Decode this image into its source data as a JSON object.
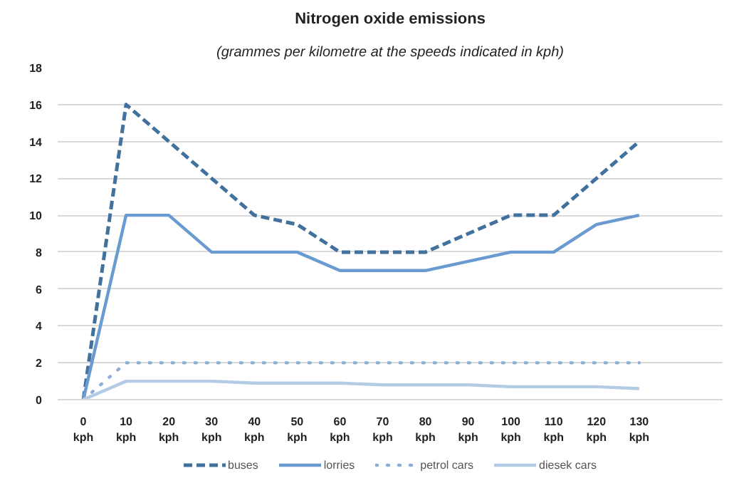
{
  "chart_data": {
    "type": "line",
    "title": "Nitrogen oxide emissions",
    "subtitle": "(grammes per kilometre at the speeds indicated in kph)",
    "categories": [
      "0 kph",
      "10 kph",
      "20 kph",
      "30 kph",
      "40 kph",
      "50 kph",
      "60 kph",
      "70 kph",
      "80 kph",
      "90 kph",
      "100 kph",
      "110 kph",
      "120 kph",
      "130 kph"
    ],
    "series": [
      {
        "name": "buses",
        "color": "#41719c",
        "line_style": "dashed",
        "values": [
          0,
          16,
          14,
          12,
          10,
          9.5,
          8,
          8,
          8,
          9,
          10,
          10,
          12,
          14
        ]
      },
      {
        "name": "lorries",
        "color": "#6a9bd0",
        "line_style": "solid",
        "values": [
          0,
          10,
          10,
          8,
          8,
          8,
          7,
          7,
          7,
          7.5,
          8,
          8,
          9.5,
          10
        ]
      },
      {
        "name": "petrol cars",
        "color": "#8eaed6",
        "line_style": "dotted",
        "values": [
          0,
          2,
          2,
          2,
          2,
          2,
          2,
          2,
          2,
          2,
          2,
          2,
          2,
          2
        ]
      },
      {
        "name": "diesek cars",
        "color": "#b4cbe6",
        "line_style": "solid",
        "values": [
          0,
          1,
          1,
          1,
          0.9,
          0.9,
          0.9,
          0.8,
          0.8,
          0.8,
          0.7,
          0.7,
          0.7,
          0.6
        ]
      }
    ],
    "ylim": [
      0,
      18
    ],
    "yticks": [
      0,
      2,
      4,
      6,
      8,
      10,
      12,
      14,
      16,
      18
    ],
    "grid": "y",
    "legend": "bottom",
    "marker": "none"
  }
}
